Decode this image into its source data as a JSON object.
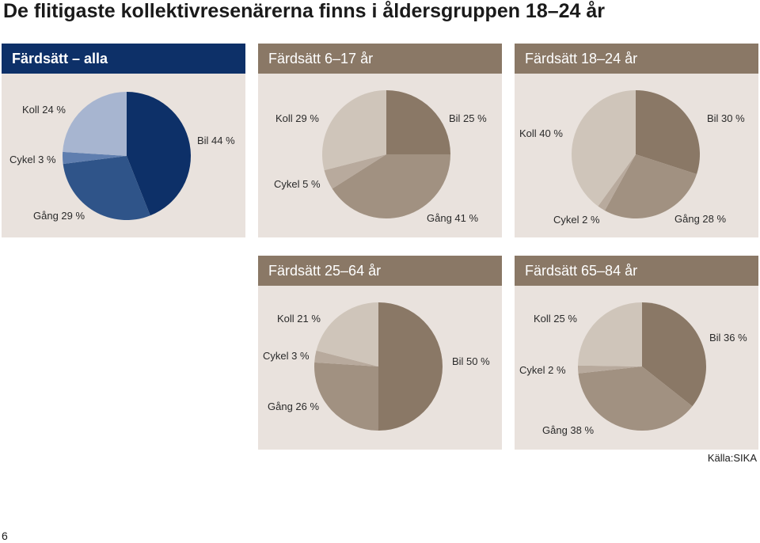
{
  "title": "De flitigaste kollektivresenärerna finns i åldersgruppen 18–24 år",
  "source": "Källa:SIKA",
  "page_number": "6",
  "colors": {
    "header_dark": "#0d3068",
    "header_brown": "#8a7866",
    "panel_bg": "#e9e2dd"
  },
  "chart_data": [
    {
      "type": "pie",
      "title": "Färdsätt – alla",
      "slices": [
        {
          "label": "Bil",
          "value": 44,
          "text": "Bil 44 %",
          "color": "#0d3068"
        },
        {
          "label": "Gång",
          "value": 29,
          "text": "Gång 29 %",
          "color": "#2f5489"
        },
        {
          "label": "Cykel",
          "value": 3,
          "text": "Cykel 3 %",
          "color": "#5f7eaf"
        },
        {
          "label": "Koll",
          "value": 24,
          "text": "Koll 24 %",
          "color": "#a7b5d0"
        }
      ]
    },
    {
      "type": "pie",
      "title": "Färdsätt 6–17 år",
      "slices": [
        {
          "label": "Bil",
          "value": 25,
          "text": "Bil 25 %",
          "color": "#8a7866"
        },
        {
          "label": "Gång",
          "value": 41,
          "text": "Gång 41 %",
          "color": "#a19181"
        },
        {
          "label": "Cykel",
          "value": 5,
          "text": "Cykel 5 %",
          "color": "#b8aa9d"
        },
        {
          "label": "Koll",
          "value": 29,
          "text": "Koll 29 %",
          "color": "#cfc5ba"
        }
      ]
    },
    {
      "type": "pie",
      "title": "Färdsätt 18–24 år",
      "slices": [
        {
          "label": "Bil",
          "value": 30,
          "text": "Bil 30 %",
          "color": "#8a7866"
        },
        {
          "label": "Gång",
          "value": 28,
          "text": "Gång 28 %",
          "color": "#a19181"
        },
        {
          "label": "Cykel",
          "value": 2,
          "text": "Cykel 2 %",
          "color": "#b8aa9d"
        },
        {
          "label": "Koll",
          "value": 40,
          "text": "Koll 40 %",
          "color": "#cfc5ba"
        }
      ]
    },
    {
      "type": "pie",
      "title": "Färdsätt 25–64 år",
      "slices": [
        {
          "label": "Bil",
          "value": 50,
          "text": "Bil 50 %",
          "color": "#8a7866"
        },
        {
          "label": "Gång",
          "value": 26,
          "text": "Gång 26 %",
          "color": "#a19181"
        },
        {
          "label": "Cykel",
          "value": 3,
          "text": "Cykel 3 %",
          "color": "#b8aa9d"
        },
        {
          "label": "Koll",
          "value": 21,
          "text": "Koll 21 %",
          "color": "#cfc5ba"
        }
      ]
    },
    {
      "type": "pie",
      "title": "Färdsätt 65–84 år",
      "slices": [
        {
          "label": "Bil",
          "value": 36,
          "text": "Bil 36 %",
          "color": "#8a7866"
        },
        {
          "label": "Gång",
          "value": 38,
          "text": "Gång 38 %",
          "color": "#a19181"
        },
        {
          "label": "Cykel",
          "value": 2,
          "text": "Cykel 2 %",
          "color": "#b8aa9d"
        },
        {
          "label": "Koll",
          "value": 25,
          "text": "Koll 25 %",
          "color": "#cfc5ba"
        }
      ]
    }
  ]
}
